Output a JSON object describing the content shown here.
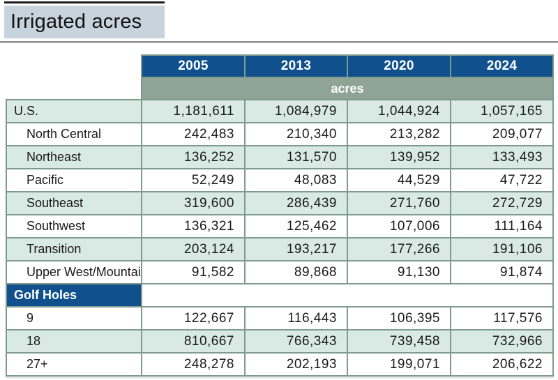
{
  "title": "Irrigated acres",
  "chart_data": {
    "type": "table",
    "title": "Irrigated acres",
    "unit": "acres",
    "columns": [
      "2005",
      "2013",
      "2020",
      "2024"
    ],
    "region_rows": [
      {
        "label": "U.S.",
        "values": [
          "1,181,611",
          "1,084,979",
          "1,044,924",
          "1,057,165"
        ]
      },
      {
        "label": "North Central",
        "values": [
          "242,483",
          "210,340",
          "213,282",
          "209,077"
        ]
      },
      {
        "label": "Northeast",
        "values": [
          "136,252",
          "131,570",
          "139,952",
          "133,493"
        ]
      },
      {
        "label": "Pacific",
        "values": [
          "52,249",
          "48,083",
          "44,529",
          "47,722"
        ]
      },
      {
        "label": "Southeast",
        "values": [
          "319,600",
          "286,439",
          "271,760",
          "272,729"
        ]
      },
      {
        "label": "Southwest",
        "values": [
          "136,321",
          "125,462",
          "107,006",
          "111,164"
        ]
      },
      {
        "label": "Transition",
        "values": [
          "203,124",
          "193,217",
          "177,266",
          "191,106"
        ]
      },
      {
        "label": "Upper West/Mountain",
        "values": [
          "91,582",
          "89,868",
          "91,130",
          "91,874"
        ]
      }
    ],
    "section_header": "Golf Holes",
    "golf_rows": [
      {
        "label": "9",
        "values": [
          "122,667",
          "116,443",
          "106,395",
          "117,576"
        ]
      },
      {
        "label": "18",
        "values": [
          "810,667",
          "766,343",
          "739,458",
          "732,966"
        ]
      },
      {
        "label": "27+",
        "values": [
          "248,278",
          "202,193",
          "199,071",
          "206,622"
        ]
      }
    ]
  },
  "colors": {
    "header-blue": "#10508c",
    "unit-sage": "#8fa496",
    "row-teal": "#d9e9e4",
    "grid-border": "#7f9a8e",
    "title-bg": "#c7d4de"
  }
}
